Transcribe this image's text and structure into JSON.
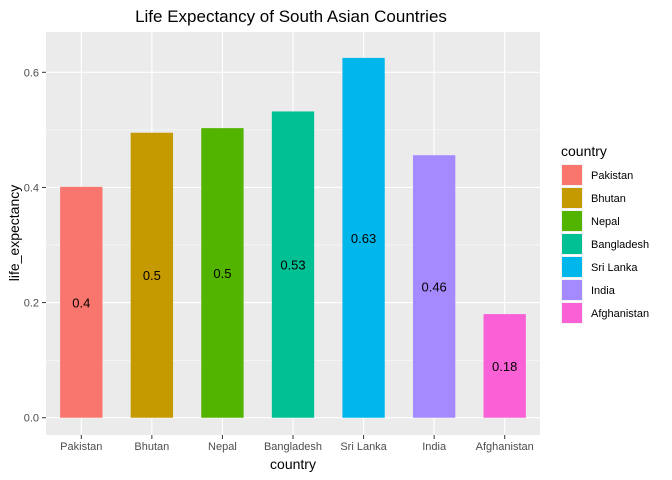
{
  "chart_data": {
    "type": "bar",
    "title": "Life Expectancy of South Asian Countries",
    "xlabel": "country",
    "ylabel": "life_expectancy",
    "categories": [
      "Pakistan",
      "Bhutan",
      "Nepal",
      "Bangladesh",
      "Sri Lanka",
      "India",
      "Afghanistan"
    ],
    "values": [
      0.401,
      0.495,
      0.503,
      0.532,
      0.625,
      0.456,
      0.18
    ],
    "data_labels": [
      "0.4",
      "0.5",
      "0.5",
      "0.53",
      "0.63",
      "0.46",
      "0.18"
    ],
    "colors": [
      "#F8766D",
      "#C49A00",
      "#53B400",
      "#00C094",
      "#00B6EB",
      "#A58AFF",
      "#FB61D7"
    ],
    "ylim": [
      -0.03,
      0.67
    ],
    "yticks": [
      0.0,
      0.2,
      0.4,
      0.6
    ],
    "ytick_labels": [
      "0.0",
      "0.2",
      "0.4",
      "0.6"
    ],
    "grid": true,
    "legend": {
      "title": "country",
      "position": "right",
      "entries": [
        "Pakistan",
        "Bhutan",
        "Nepal",
        "Bangladesh",
        "Sri Lanka",
        "India",
        "Afghanistan"
      ]
    }
  }
}
